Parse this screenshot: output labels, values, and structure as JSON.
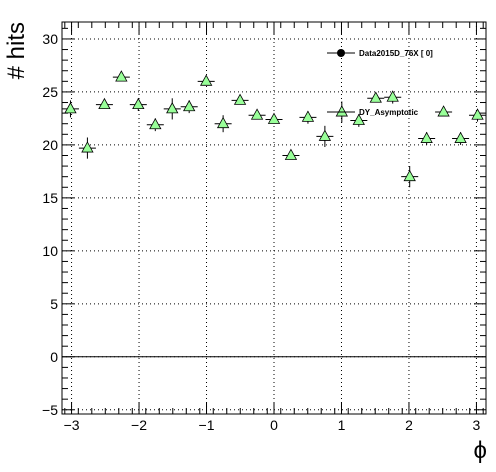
{
  "chart_data": {
    "type": "scatter",
    "title": "",
    "xlabel": "ϕ",
    "ylabel": "# hits",
    "xlim": [
      -3.1416,
      3.1416
    ],
    "ylim": [
      -5.4,
      31.6
    ],
    "xticks": [
      -3,
      -2,
      -1,
      0,
      1,
      2,
      3
    ],
    "yticks": [
      -5,
      0,
      5,
      10,
      15,
      20,
      25,
      30
    ],
    "xtick_labels": [
      "−3",
      "−2",
      "−1",
      "0",
      "1",
      "2",
      "3"
    ],
    "ytick_labels": [
      "−5",
      "0",
      "5",
      "10",
      "15",
      "20",
      "25",
      "30"
    ],
    "grid": true,
    "zero_line": true,
    "legend_position": "top-right",
    "series": [
      {
        "name": "Data2015D_76X [       0]",
        "marker": "circle",
        "color": "#000000",
        "x": [],
        "y": []
      },
      {
        "name": "DY_Asymptotic",
        "marker": "triangle",
        "color": "#99ff99",
        "x": [
          -3.016,
          -2.765,
          -2.513,
          -2.262,
          -2.011,
          -1.759,
          -1.508,
          -1.257,
          -1.005,
          -0.754,
          -0.503,
          -0.251,
          0.0,
          0.251,
          0.503,
          0.754,
          1.005,
          1.257,
          1.508,
          1.759,
          2.011,
          2.262,
          2.513,
          2.765,
          3.016
        ],
        "y": [
          23.4,
          19.7,
          23.8,
          26.4,
          23.8,
          21.9,
          23.4,
          23.6,
          26.0,
          22.0,
          24.2,
          22.8,
          22.4,
          19.0,
          22.6,
          20.8,
          23.1,
          22.3,
          24.4,
          24.5,
          17.0,
          20.6,
          23.1,
          20.6,
          22.8
        ],
        "xerr": 0.126,
        "yerr": [
          0.8,
          1.0,
          0.0,
          0.0,
          0.6,
          0.6,
          1.0,
          0.6,
          0.0,
          0.8,
          0.0,
          0.0,
          0.0,
          0.0,
          0.6,
          1.0,
          1.0,
          0.6,
          0.0,
          0.6,
          1.0,
          0.6,
          0.0,
          0.6,
          0.6
        ]
      }
    ]
  }
}
